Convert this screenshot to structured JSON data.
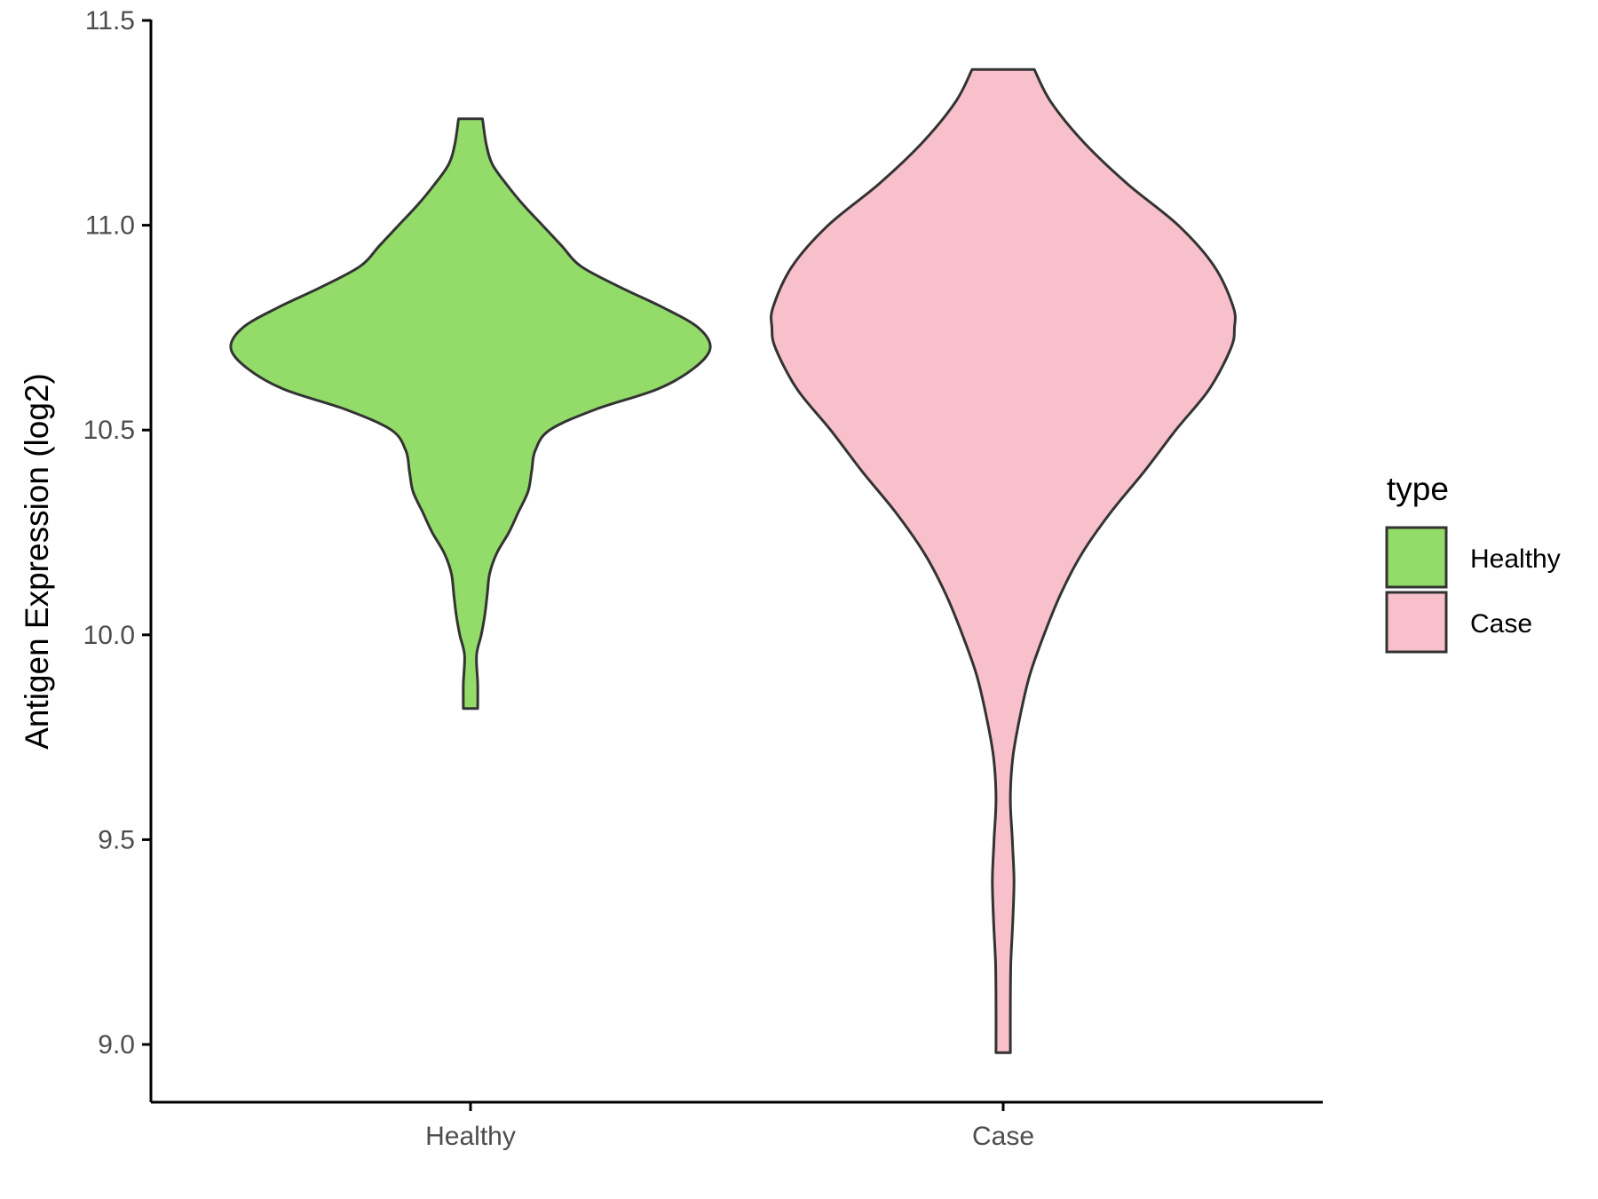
{
  "chart_data": {
    "type": "violin",
    "ylabel": "Antigen Expression (log2)",
    "ylim": [
      8.87,
      11.5
    ],
    "y_ticks": [
      9.0,
      9.5,
      10.0,
      10.5,
      11.0,
      11.5
    ],
    "y_tick_labels": [
      "9.0",
      "9.5",
      "10.0",
      "10.5",
      "11.0",
      "11.5"
    ],
    "categories": [
      "Healthy",
      "Case"
    ],
    "legend": {
      "title": "type",
      "position": "right",
      "items": [
        {
          "label": "Healthy",
          "color": "#93dc6a"
        },
        {
          "label": "Case",
          "color": "#f8c0cb"
        }
      ]
    },
    "grid": false,
    "outline_color": "#333333",
    "series": [
      {
        "name": "Healthy",
        "color": "#93dc6a",
        "min": 9.82,
        "max": 11.26,
        "density_profile": [
          [
            9.82,
            0.03
          ],
          [
            9.88,
            0.03
          ],
          [
            9.95,
            0.025
          ],
          [
            10.0,
            0.045
          ],
          [
            10.05,
            0.06
          ],
          [
            10.1,
            0.07
          ],
          [
            10.15,
            0.08
          ],
          [
            10.2,
            0.11
          ],
          [
            10.25,
            0.16
          ],
          [
            10.3,
            0.2
          ],
          [
            10.35,
            0.24
          ],
          [
            10.4,
            0.255
          ],
          [
            10.45,
            0.27
          ],
          [
            10.5,
            0.33
          ],
          [
            10.55,
            0.52
          ],
          [
            10.6,
            0.78
          ],
          [
            10.65,
            0.93
          ],
          [
            10.7,
            1.0
          ],
          [
            10.75,
            0.95
          ],
          [
            10.8,
            0.8
          ],
          [
            10.85,
            0.62
          ],
          [
            10.9,
            0.46
          ],
          [
            10.95,
            0.38
          ],
          [
            11.0,
            0.3
          ],
          [
            11.05,
            0.22
          ],
          [
            11.1,
            0.15
          ],
          [
            11.15,
            0.09
          ],
          [
            11.2,
            0.065
          ],
          [
            11.26,
            0.05
          ]
        ]
      },
      {
        "name": "Case",
        "color": "#f8c0cb",
        "min": 8.98,
        "max": 11.38,
        "density_profile": [
          [
            8.98,
            0.03
          ],
          [
            9.1,
            0.03
          ],
          [
            9.2,
            0.032
          ],
          [
            9.3,
            0.04
          ],
          [
            9.4,
            0.045
          ],
          [
            9.5,
            0.038
          ],
          [
            9.6,
            0.03
          ],
          [
            9.7,
            0.04
          ],
          [
            9.8,
            0.07
          ],
          [
            9.9,
            0.11
          ],
          [
            10.0,
            0.17
          ],
          [
            10.1,
            0.24
          ],
          [
            10.2,
            0.33
          ],
          [
            10.3,
            0.45
          ],
          [
            10.4,
            0.59
          ],
          [
            10.5,
            0.72
          ],
          [
            10.6,
            0.86
          ],
          [
            10.7,
            0.95
          ],
          [
            10.75,
            0.965
          ],
          [
            10.8,
            0.96
          ],
          [
            10.9,
            0.88
          ],
          [
            11.0,
            0.73
          ],
          [
            11.1,
            0.52
          ],
          [
            11.2,
            0.34
          ],
          [
            11.3,
            0.2
          ],
          [
            11.38,
            0.13
          ]
        ]
      }
    ]
  }
}
